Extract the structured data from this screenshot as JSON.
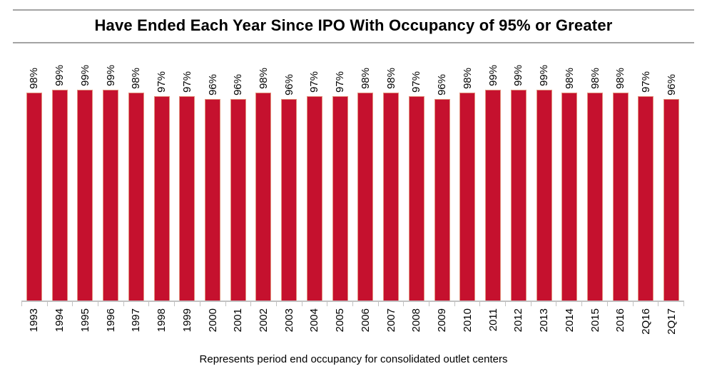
{
  "header": {
    "title": "Have Ended Each Year Since IPO With Occupancy of 95% or Greater"
  },
  "footer": {
    "caption": "Represents period end occupancy for consolidated outlet centers"
  },
  "colors": {
    "bar": "#c5112e",
    "bar_edge": "#e2927e",
    "axis": "#c2c2c2",
    "header_rule": "#a3a3a3",
    "text": "#000000"
  },
  "chart_data": {
    "type": "bar",
    "categories": [
      "1993",
      "1994",
      "1995",
      "1996",
      "1997",
      "1998",
      "1999",
      "2000",
      "2001",
      "2002",
      "2003",
      "2004",
      "2005",
      "2006",
      "2007",
      "2008",
      "2009",
      "2010",
      "2011",
      "2012",
      "2013",
      "2014",
      "2015",
      "2016",
      "2Q16",
      "2Q17"
    ],
    "values": [
      98,
      99,
      99,
      99,
      98,
      97,
      97,
      96,
      96,
      98,
      96,
      97,
      97,
      98,
      98,
      97,
      96,
      98,
      99,
      99,
      99,
      98,
      98,
      98,
      97,
      96
    ],
    "data_label_format": "{v}%",
    "title": "Have Ended Each Year Since IPO With Occupancy of 95% or Greater",
    "xlabel": "",
    "ylabel": "",
    "ylim_implied": [
      95,
      100
    ],
    "grid": false,
    "legend": false,
    "y_axis_visible": false,
    "labels_rotated_degrees": 90,
    "bar_color": "#c5112e"
  }
}
